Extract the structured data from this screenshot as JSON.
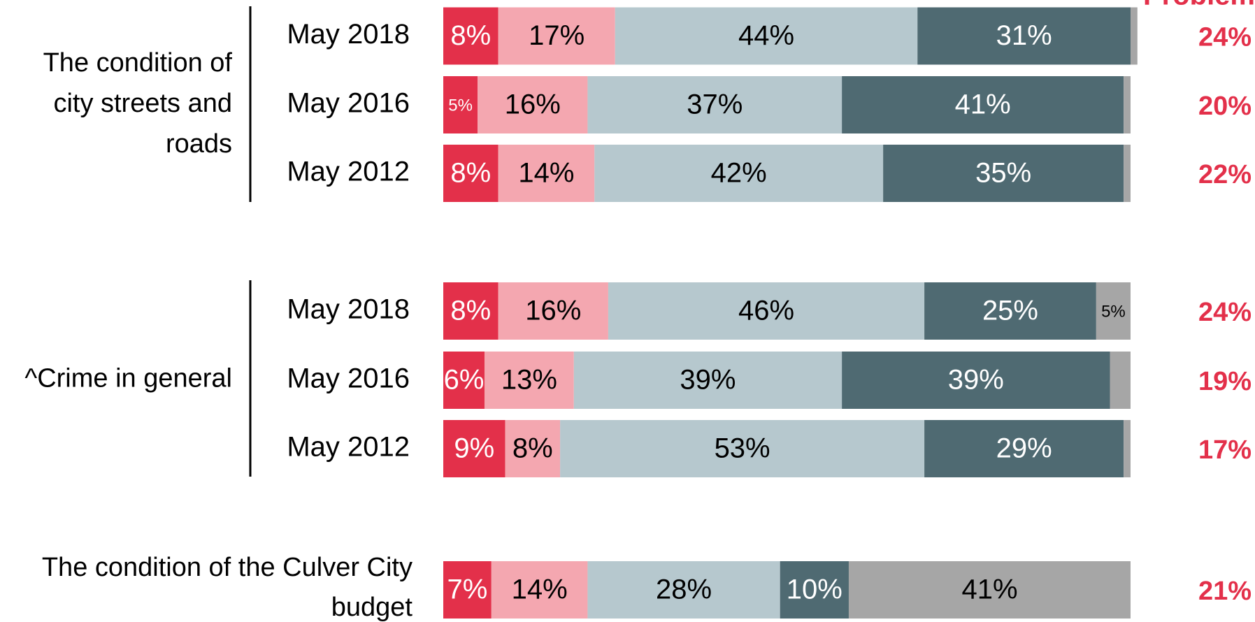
{
  "chart_data": {
    "type": "bar",
    "orientation": "horizontal",
    "stacked": true,
    "net_header": "Problem",
    "colors": [
      "#e3304a",
      "#f4a7b0",
      "#b6c8ce",
      "#4f6a72",
      "#a6a6a6"
    ],
    "label_colors": [
      "#ffffff",
      "#000000",
      "#000000",
      "#ffffff",
      "#000000"
    ],
    "xlim": [
      0,
      100
    ],
    "groups": [
      {
        "label": [
          "The condition of",
          "city streets and",
          "roads"
        ],
        "rows": [
          {
            "category": "May 2018",
            "values": [
              8,
              17,
              44,
              31,
              1
            ],
            "value_labels": [
              "8%",
              "17%",
              "44%",
              "31%",
              null
            ],
            "net": 24,
            "net_label": "24%"
          },
          {
            "category": "May 2016",
            "values": [
              5,
              16,
              37,
              41,
              1
            ],
            "value_labels": [
              "5%",
              "16%",
              "37%",
              "41%",
              null
            ],
            "net": 20,
            "net_label": "20%"
          },
          {
            "category": "May 2012",
            "values": [
              8,
              14,
              42,
              35,
              1
            ],
            "value_labels": [
              "8%",
              "14%",
              "42%",
              "35%",
              null
            ],
            "net": 22,
            "net_label": "22%"
          }
        ]
      },
      {
        "label": [
          "^Crime in general"
        ],
        "rows": [
          {
            "category": "May 2018",
            "values": [
              8,
              16,
              46,
              25,
              5
            ],
            "value_labels": [
              "8%",
              "16%",
              "46%",
              "25%",
              "5%"
            ],
            "net": 24,
            "net_label": "24%"
          },
          {
            "category": "May 2016",
            "values": [
              6,
              13,
              39,
              39,
              3
            ],
            "value_labels": [
              "6%",
              "13%",
              "39%",
              "39%",
              null
            ],
            "net": 19,
            "net_label": "19%"
          },
          {
            "category": "May 2012",
            "values": [
              9,
              8,
              53,
              29,
              1
            ],
            "value_labels": [
              "9%",
              "8%",
              "53%",
              "29%",
              null
            ],
            "net": 17,
            "net_label": "17%"
          }
        ]
      },
      {
        "label": [
          "The condition of the Culver City",
          "budget"
        ],
        "rows": [
          {
            "category": null,
            "values": [
              7,
              14,
              28,
              10,
              41
            ],
            "value_labels": [
              "7%",
              "14%",
              "28%",
              "10%",
              "41%"
            ],
            "net": 21,
            "net_label": "21%"
          }
        ]
      }
    ]
  }
}
